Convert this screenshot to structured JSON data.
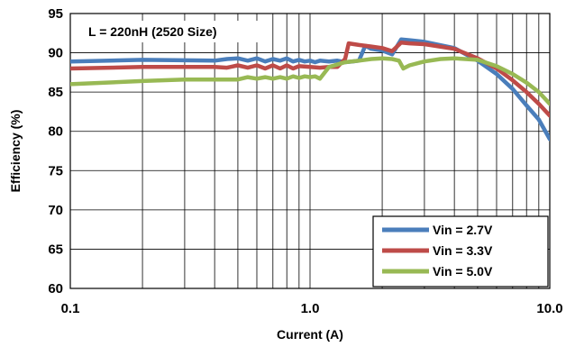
{
  "chart_data": {
    "type": "line",
    "title": "",
    "annotation": "L = 220nH (2520 Size)",
    "xlabel": "Current (A)",
    "ylabel": "Efficiency (%)",
    "x_scale": "log",
    "xlim": [
      0.1,
      10.0
    ],
    "ylim": [
      60,
      95
    ],
    "x_tick_labels": [
      "0.1",
      "1.0",
      "10.0"
    ],
    "y_ticks": [
      60,
      65,
      70,
      75,
      80,
      85,
      90,
      95
    ],
    "y_tick_labels": [
      "60",
      "65",
      "70",
      "75",
      "80",
      "85",
      "90",
      "95"
    ],
    "grid": true,
    "legend_position": "bottom-right",
    "series": [
      {
        "name": "Vin = 2.7V",
        "color": "#4a7ebb",
        "x": [
          0.1,
          0.2,
          0.4,
          0.45,
          0.5,
          0.55,
          0.6,
          0.65,
          0.7,
          0.75,
          0.8,
          0.85,
          0.9,
          0.95,
          1.0,
          1.05,
          1.1,
          1.2,
          1.3,
          1.4,
          1.5,
          1.6,
          1.7,
          1.8,
          2.0,
          2.2,
          2.4,
          2.6,
          3.0,
          4.0,
          5.0,
          6.0,
          7.0,
          8.0,
          9.0,
          10.0
        ],
        "values": [
          88.9,
          89.1,
          89.0,
          89.2,
          89.3,
          89.0,
          89.3,
          88.9,
          89.2,
          89.0,
          89.3,
          88.9,
          89.1,
          88.9,
          89.0,
          88.8,
          89.0,
          88.9,
          89.0,
          88.8,
          88.9,
          89.0,
          90.9,
          90.5,
          90.3,
          89.8,
          91.7,
          91.6,
          91.4,
          90.6,
          89.0,
          87.3,
          85.4,
          83.3,
          81.5,
          79.0
        ]
      },
      {
        "name": "Vin = 3.3V",
        "color": "#be4b48",
        "x": [
          0.1,
          0.2,
          0.4,
          0.45,
          0.5,
          0.55,
          0.6,
          0.65,
          0.7,
          0.75,
          0.8,
          0.85,
          0.9,
          1.0,
          1.1,
          1.2,
          1.3,
          1.4,
          1.45,
          1.6,
          1.8,
          2.0,
          2.2,
          2.4,
          2.6,
          3.0,
          4.0,
          5.0,
          6.0,
          7.0,
          8.0,
          9.0,
          10.0
        ],
        "values": [
          88.0,
          88.2,
          88.2,
          88.1,
          88.4,
          88.1,
          88.4,
          88.0,
          88.4,
          88.0,
          88.4,
          88.0,
          88.3,
          88.2,
          88.1,
          88.2,
          88.2,
          89.2,
          91.2,
          91.0,
          90.8,
          90.6,
          90.2,
          91.3,
          91.2,
          91.1,
          90.5,
          89.3,
          88.0,
          86.5,
          85.0,
          83.5,
          82.0
        ]
      },
      {
        "name": "Vin = 5.0V",
        "color": "#98b954",
        "x": [
          0.1,
          0.2,
          0.3,
          0.4,
          0.5,
          0.55,
          0.6,
          0.65,
          0.7,
          0.75,
          0.8,
          0.85,
          0.9,
          0.95,
          1.0,
          1.05,
          1.1,
          1.2,
          1.4,
          1.6,
          1.8,
          2.0,
          2.2,
          2.35,
          2.45,
          2.6,
          3.0,
          3.5,
          4.0,
          5.0,
          6.0,
          7.0,
          8.0,
          9.0,
          10.0
        ],
        "values": [
          86.0,
          86.4,
          86.6,
          86.6,
          86.6,
          86.9,
          86.7,
          86.9,
          86.7,
          86.9,
          86.7,
          87.0,
          86.8,
          87.0,
          86.9,
          87.0,
          86.7,
          88.2,
          88.8,
          89.0,
          89.2,
          89.3,
          89.2,
          89.0,
          88.0,
          88.4,
          88.9,
          89.2,
          89.3,
          89.1,
          88.3,
          87.3,
          86.2,
          85.0,
          83.5
        ]
      }
    ]
  }
}
